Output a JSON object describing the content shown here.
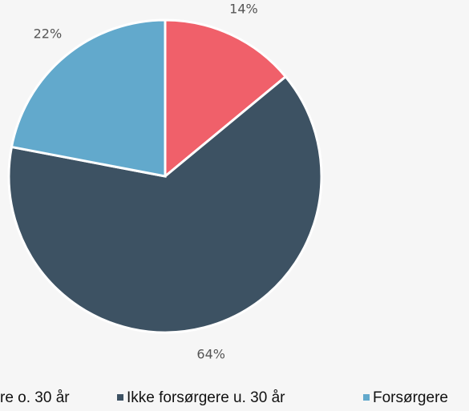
{
  "chart_data": {
    "type": "pie",
    "categories": [
      "re o. 30 år",
      "Ikke forsørgere u. 30 år",
      "Forsørgere"
    ],
    "values": [
      14,
      64,
      22
    ],
    "value_labels": [
      "14%",
      "64%",
      "22%"
    ],
    "colors": [
      "#f0606a",
      "#3d5263",
      "#62a9cc"
    ],
    "legend": "bottom"
  }
}
